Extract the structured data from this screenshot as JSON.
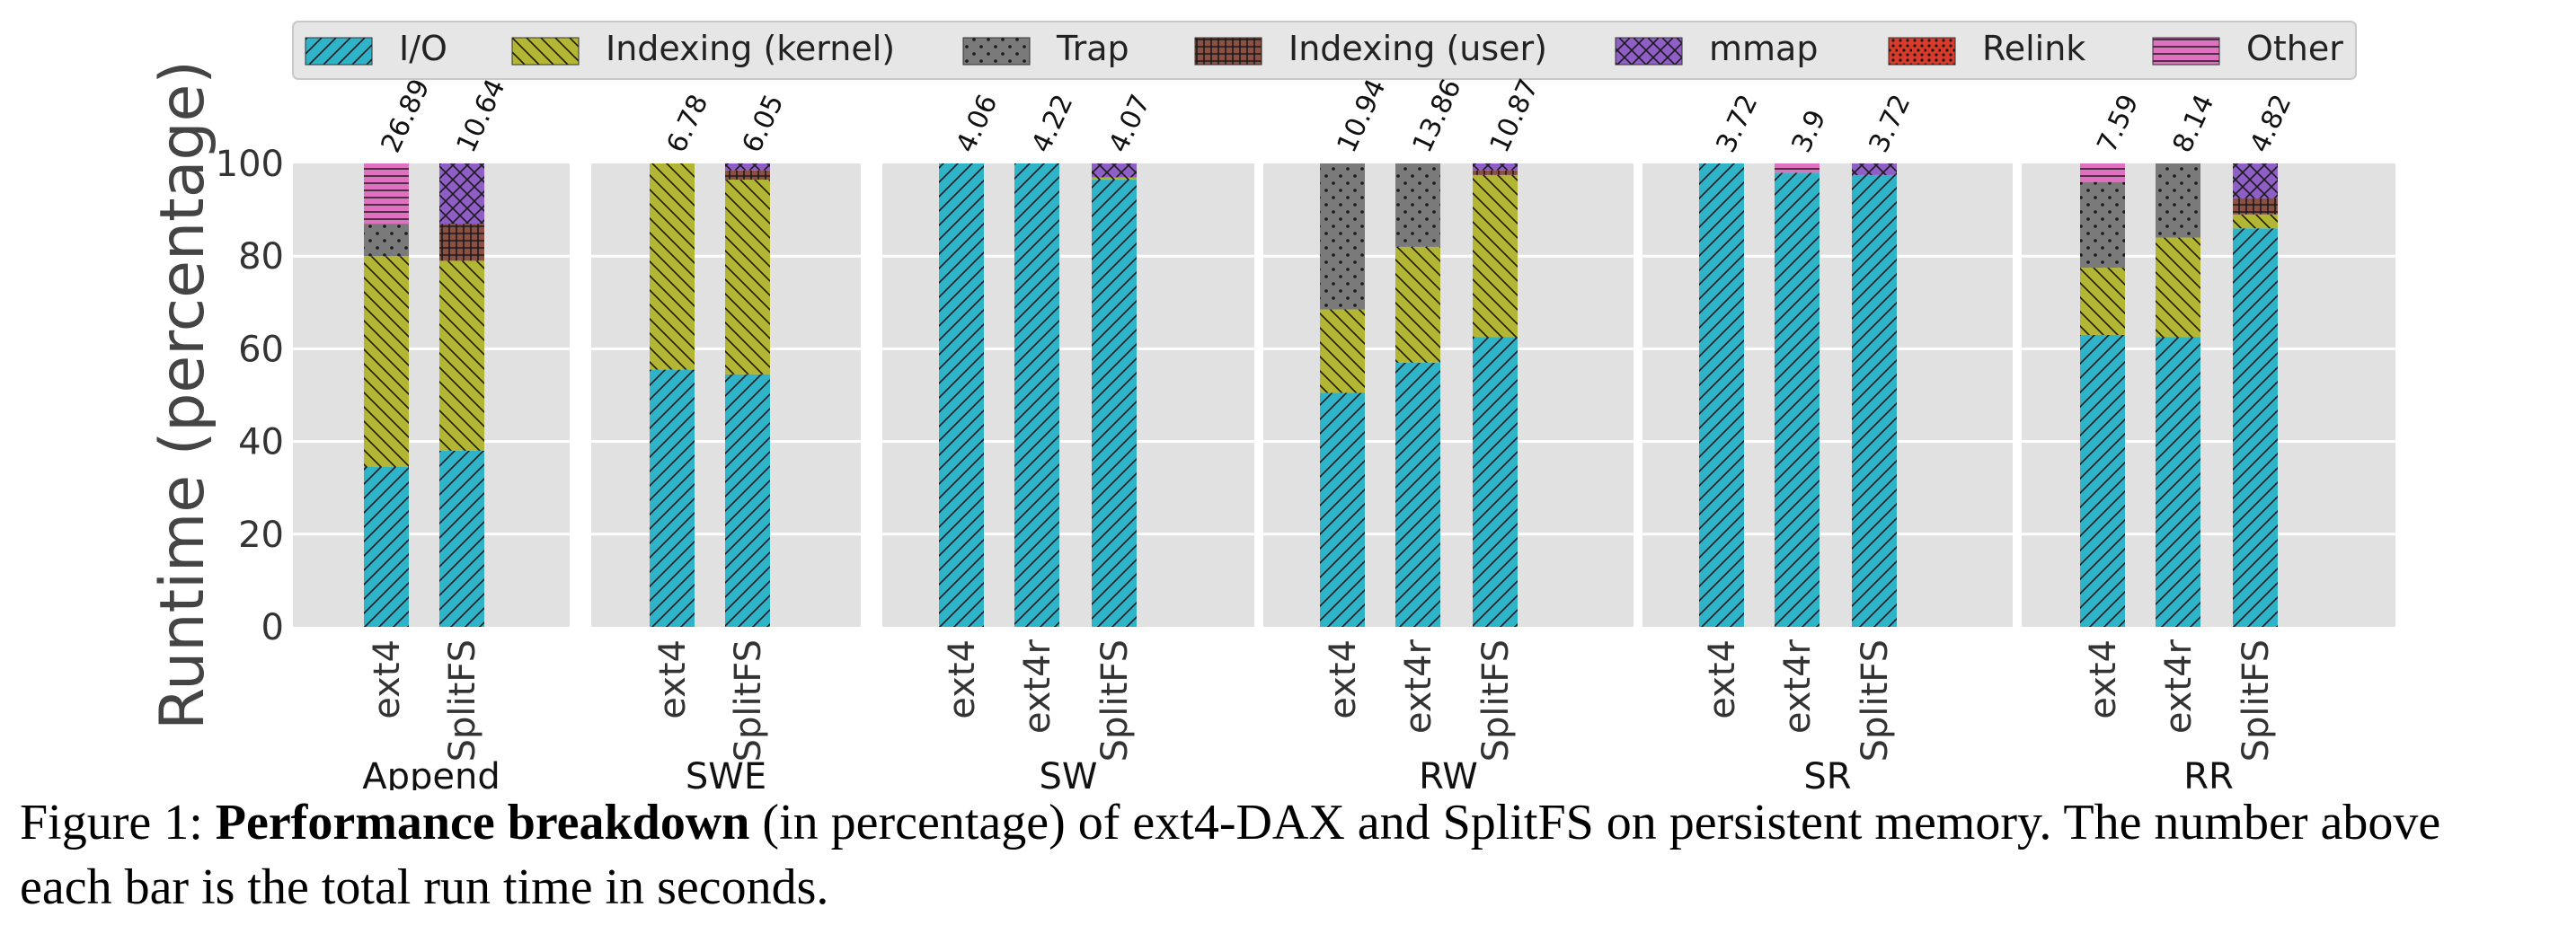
{
  "chart_data": {
    "type": "bar",
    "stacked": true,
    "ylabel": "Runtime (percentage)",
    "ylim": [
      0,
      100
    ],
    "yticks": [
      0,
      20,
      40,
      60,
      80,
      100
    ],
    "grid": true,
    "legend_position": "top",
    "series": [
      {
        "name": "I/O",
        "color": "#2fb3c9",
        "hatch": "diagonal-up"
      },
      {
        "name": "Indexing (kernel)",
        "color": "#b3b534",
        "hatch": "diagonal-down"
      },
      {
        "name": "Trap",
        "color": "#7a7a7a",
        "hatch": "dots"
      },
      {
        "name": "Indexing (user)",
        "color": "#8b4f43",
        "hatch": "grid"
      },
      {
        "name": "mmap",
        "color": "#8f5fc7",
        "hatch": "crosshatch"
      },
      {
        "name": "Relink",
        "color": "#d93a2b",
        "hatch": "dense-dots"
      },
      {
        "name": "Other",
        "color": "#e070c0",
        "hatch": "horizontal"
      }
    ],
    "groups": [
      {
        "name": "Append",
        "bars": [
          {
            "label": "ext4",
            "total": "26.89",
            "values": [
              34.5,
              45.5,
              7,
              0,
              0,
              0,
              13
            ]
          },
          {
            "label": "SplitFS",
            "total": "10.64",
            "values": [
              38,
              41,
              0,
              8,
              13,
              0,
              0
            ]
          }
        ]
      },
      {
        "name": "SWE",
        "bars": [
          {
            "label": "ext4",
            "total": "6.78",
            "values": [
              55.5,
              44.5,
              0,
              0,
              0,
              0,
              0
            ]
          },
          {
            "label": "SplitFS",
            "total": "6.05",
            "values": [
              54.5,
              42,
              0,
              2,
              1.5,
              0,
              0
            ]
          }
        ]
      },
      {
        "name": "SW",
        "bars": [
          {
            "label": "ext4",
            "total": "4.06",
            "values": [
              100,
              0,
              0,
              0,
              0,
              0,
              0
            ]
          },
          {
            "label": "ext4r",
            "total": "4.22",
            "values": [
              100,
              0,
              0,
              0,
              0,
              0,
              0
            ]
          },
          {
            "label": "SplitFS",
            "total": "4.07",
            "values": [
              96.5,
              0.5,
              0,
              0,
              3,
              0,
              0
            ]
          }
        ]
      },
      {
        "name": "RW",
        "bars": [
          {
            "label": "ext4",
            "total": "10.94",
            "values": [
              50.5,
              18,
              31.5,
              0,
              0,
              0,
              0
            ]
          },
          {
            "label": "ext4r",
            "total": "13.86",
            "values": [
              57,
              25,
              18,
              0,
              0,
              0,
              0
            ]
          },
          {
            "label": "SplitFS",
            "total": "10.87",
            "values": [
              62.5,
              35,
              0,
              1,
              1.5,
              0,
              0
            ]
          }
        ]
      },
      {
        "name": "SR",
        "bars": [
          {
            "label": "ext4",
            "total": "3.72",
            "values": [
              100,
              0,
              0,
              0,
              0,
              0,
              0
            ]
          },
          {
            "label": "ext4r",
            "total": "3.9",
            "values": [
              98,
              0,
              0,
              0,
              0,
              0,
              2
            ]
          },
          {
            "label": "SplitFS",
            "total": "3.72",
            "values": [
              97.5,
              0,
              0,
              0,
              2.5,
              0,
              0
            ]
          }
        ]
      },
      {
        "name": "RR",
        "bars": [
          {
            "label": "ext4",
            "total": "7.59",
            "values": [
              63,
              14.5,
              18.5,
              0,
              0,
              0,
              4
            ]
          },
          {
            "label": "ext4r",
            "total": "8.14",
            "values": [
              62.5,
              21.5,
              16,
              0,
              0,
              0,
              0
            ]
          },
          {
            "label": "SplitFS",
            "total": "4.82",
            "values": [
              86,
              3,
              0,
              3.5,
              7.5,
              0,
              0
            ]
          }
        ]
      }
    ]
  },
  "caption": {
    "prefix": "Figure 1: ",
    "bold": "Performance breakdown",
    "rest": " (in percentage) of ext4-DAX and SplitFS on persistent memory. The number above each bar is the total run time in seconds."
  }
}
